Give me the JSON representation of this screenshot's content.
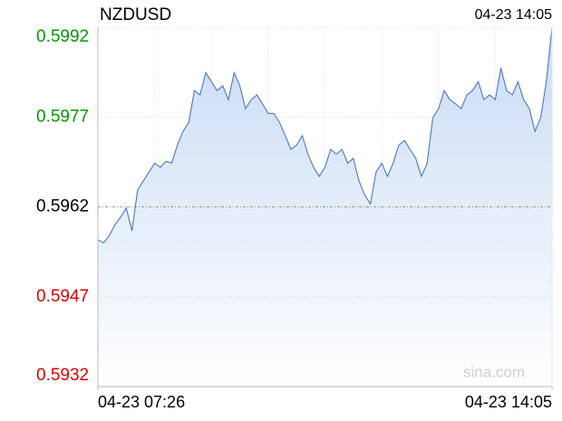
{
  "chart_data": {
    "type": "area",
    "title": "NZDUSD",
    "timestamp": "04-23 14:05",
    "watermark": "sina.com",
    "color": "#4a78c2",
    "values": [
      0.59565,
      0.5956,
      0.59572,
      0.5959,
      0.59603,
      0.59618,
      0.5958,
      0.59648,
      0.59663,
      0.59678,
      0.59693,
      0.59686,
      0.59696,
      0.59693,
      0.59723,
      0.59746,
      0.59761,
      0.59814,
      0.59807,
      0.59844,
      0.59829,
      0.59814,
      0.59822,
      0.59799,
      0.59844,
      0.59822,
      0.59784,
      0.59799,
      0.59807,
      0.59792,
      0.59776,
      0.59776,
      0.59761,
      0.59739,
      0.59716,
      0.59723,
      0.59739,
      0.59708,
      0.59686,
      0.59671,
      0.59686,
      0.59716,
      0.59708,
      0.59716,
      0.59693,
      0.59701,
      0.59663,
      0.5964,
      0.59625,
      0.59678,
      0.59693,
      0.59671,
      0.59693,
      0.59723,
      0.59731,
      0.59716,
      0.59701,
      0.59671,
      0.59693,
      0.59769,
      0.59784,
      0.59814,
      0.59799,
      0.59792,
      0.59784,
      0.59807,
      0.59814,
      0.59829,
      0.59799,
      0.59807,
      0.59799,
      0.59852,
      0.59814,
      0.59807,
      0.59829,
      0.59799,
      0.59784,
      0.59746,
      0.59769,
      0.59829,
      0.5992
    ],
    "xlim": [
      0,
      80
    ],
    "xticks": [
      {
        "value": 0,
        "label": "04-23 07:26"
      },
      {
        "value": 80,
        "label": "04-23 14:05"
      }
    ],
    "xgrid": [
      10,
      20,
      30,
      40,
      50,
      60,
      70
    ],
    "ylim": [
      0.5932,
      0.5992
    ],
    "yticks": [
      0.5992,
      0.5977,
      0.5962,
      0.5947,
      0.5932
    ],
    "ytick_colors": [
      "#009900",
      "#009900",
      "#000000",
      "#dd0000",
      "#dd0000"
    ],
    "grid": true
  }
}
